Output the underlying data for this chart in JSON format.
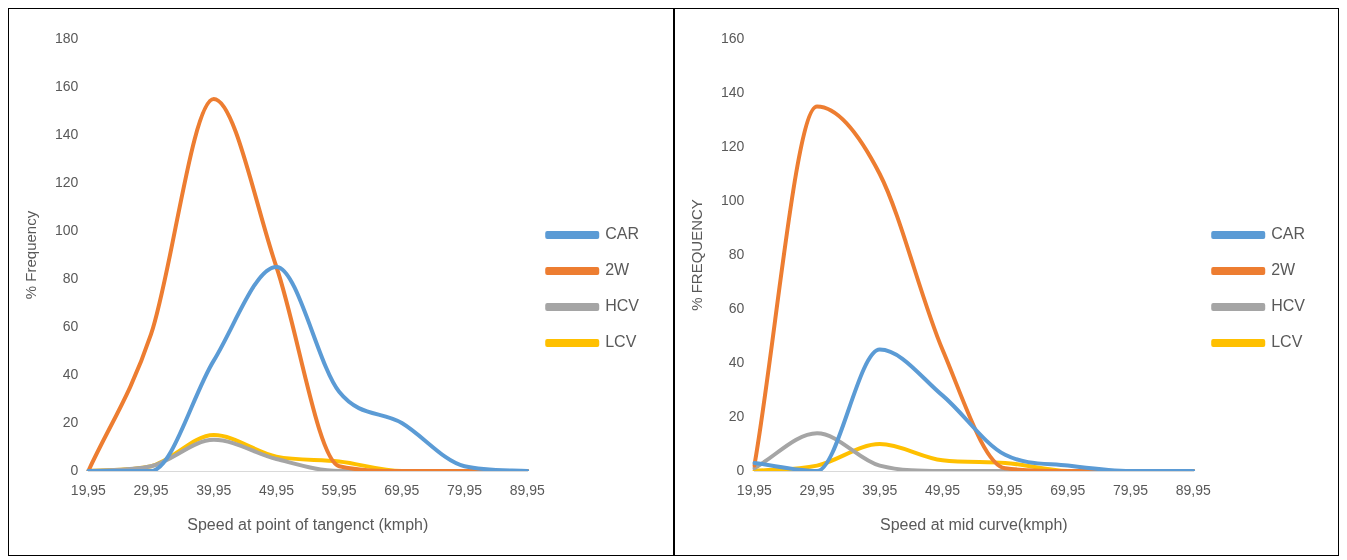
{
  "chart_data": [
    {
      "type": "line",
      "xlabel": "Speed at point of tangenct (kmph)",
      "ylabel": "% Frequency",
      "categories": [
        "19,95",
        "29,95",
        "39,95",
        "49,95",
        "59,95",
        "69,95",
        "79,95",
        "89,95"
      ],
      "ylim": [
        0,
        180
      ],
      "yticks": [
        0,
        20,
        40,
        60,
        80,
        100,
        120,
        140,
        160,
        180
      ],
      "grid": false,
      "legend": "right",
      "marker": "none",
      "series": [
        {
          "name": "CAR",
          "color": "#5b9bd5",
          "values": [
            0,
            0,
            46,
            85,
            33,
            20,
            2,
            0
          ]
        },
        {
          "name": "2W",
          "color": "#ed7d31",
          "values": [
            0,
            57,
            155,
            85,
            2,
            0,
            0,
            0
          ]
        },
        {
          "name": "HCV",
          "color": "#a5a5a5",
          "values": [
            0,
            2,
            13,
            5,
            0,
            0,
            0,
            0
          ]
        },
        {
          "name": "LCV",
          "color": "#ffc000",
          "values": [
            0,
            2,
            15,
            6,
            4,
            0,
            0,
            0
          ]
        }
      ]
    },
    {
      "type": "line",
      "xlabel": "Speed at mid curve(kmph)",
      "ylabel": "% FREQUENCY",
      "categories": [
        "19,95",
        "29,95",
        "39,95",
        "49,95",
        "59,95",
        "69,95",
        "79,95",
        "89,95"
      ],
      "ylim": [
        0,
        160
      ],
      "yticks": [
        0,
        20,
        40,
        60,
        80,
        100,
        120,
        140,
        160
      ],
      "grid": false,
      "legend": "right",
      "marker": "none",
      "series": [
        {
          "name": "CAR",
          "color": "#5b9bd5",
          "values": [
            3,
            0,
            45,
            28,
            6,
            2,
            0,
            0
          ]
        },
        {
          "name": "2W",
          "color": "#ed7d31",
          "values": [
            2,
            135,
            110,
            45,
            1,
            0,
            0,
            0
          ]
        },
        {
          "name": "HCV",
          "color": "#a5a5a5",
          "values": [
            1,
            14,
            2,
            0,
            0,
            0,
            0,
            0
          ]
        },
        {
          "name": "LCV",
          "color": "#ffc000",
          "values": [
            0,
            2,
            10,
            4,
            3,
            0,
            0,
            0
          ]
        }
      ]
    }
  ]
}
